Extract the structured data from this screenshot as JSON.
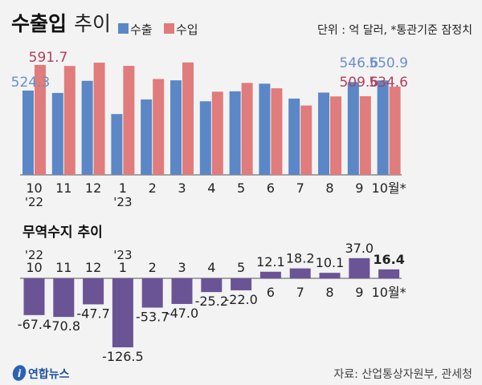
{
  "colors": {
    "exports": "#5b87c6",
    "imports": "#e07c7c",
    "balance": "#6a5496",
    "exports_label": "#6b90c9",
    "imports_label": "#b3405c",
    "background": "#f3f3f3"
  },
  "header": {
    "title_bold": "수출입",
    "title_light": "추이",
    "unit_note": "단위 : 억 달러, *통관기준 잠정치"
  },
  "chart_data": [
    {
      "type": "bar",
      "title": "수출입 추이",
      "categories": [
        "10",
        "11",
        "12",
        "1",
        "2",
        "3",
        "4",
        "5",
        "6",
        "7",
        "8",
        "9",
        "10월*"
      ],
      "year_labels": {
        "0": "'22",
        "3": "'23"
      },
      "series": [
        {
          "name": "수출",
          "values": [
            524.3,
            518.1,
            549.9,
            462.7,
            501.0,
            551.2,
            496.2,
            522.4,
            542.4,
            503.3,
            519.0,
            546.6,
            550.9
          ]
        },
        {
          "name": "수입",
          "values": [
            591.7,
            588.9,
            597.6,
            589.2,
            554.7,
            598.2,
            521.4,
            544.4,
            530.3,
            485.1,
            508.9,
            509.6,
            534.6
          ]
        }
      ],
      "data_labels": [
        {
          "series": 0,
          "index": 0,
          "text": "524.3"
        },
        {
          "series": 1,
          "index": 0,
          "text": "591.7"
        },
        {
          "series": 0,
          "index": 11,
          "text": "546.6"
        },
        {
          "series": 1,
          "index": 11,
          "text": "509.6"
        },
        {
          "series": 0,
          "index": 12,
          "text": "550.9"
        },
        {
          "series": 1,
          "index": 12,
          "text": "534.6"
        }
      ],
      "ylim": [
        303,
        620
      ],
      "legend": "top",
      "grid": false
    },
    {
      "type": "bar",
      "title": "무역수지 추이",
      "categories": [
        "10",
        "11",
        "12",
        "1",
        "2",
        "3",
        "4",
        "5",
        "6",
        "7",
        "8",
        "9",
        "10월*"
      ],
      "year_labels": {
        "0": "'22",
        "3": "'23"
      },
      "values": [
        -67.4,
        -70.8,
        -47.7,
        -126.5,
        -53.7,
        -47.0,
        -25.2,
        -22.0,
        12.1,
        18.2,
        10.1,
        37.0,
        16.4
      ],
      "value_labels": [
        "-67.4",
        "-70.8",
        "-47.7",
        "-126.5",
        "-53.7",
        "-47.0",
        "-25.2",
        "-22.0",
        "12.1",
        "18.2",
        "10.1",
        "37.0",
        "16.4"
      ],
      "highlight_index": 12,
      "ylim": [
        -130,
        40
      ],
      "grid": false
    }
  ],
  "footer": {
    "logo": "연합뉴스",
    "source": "자료: 산업통상자원부, 관세청"
  }
}
